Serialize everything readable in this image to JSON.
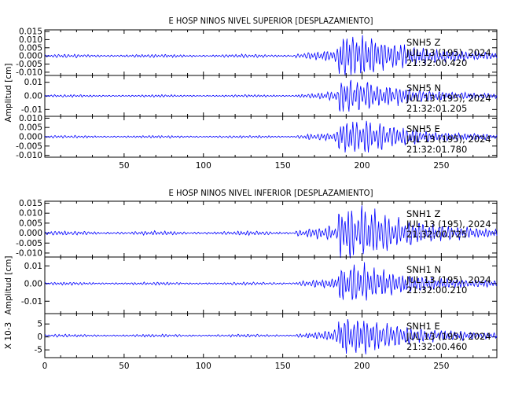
{
  "chart_data": [
    {
      "type": "line",
      "title": "E HOSP NINOS NIVEL SUPERIOR [DESPLAZAMIENTO]",
      "ylabel": "Amplitud [cm]",
      "xlim": [
        0,
        285
      ],
      "x_ticks": [
        "50",
        "100",
        "150",
        "200",
        "250"
      ],
      "x_tick_values": [
        50,
        100,
        150,
        200,
        250
      ],
      "panels": [
        {
          "station": "SNH5",
          "component": "Z",
          "date": "JUL 13 (195), 2024",
          "time": "21:32:00.420",
          "ylim": [
            -0.012,
            0.016
          ],
          "y_ticks": [
            "0.015",
            "0.010",
            "0.005",
            "0.000",
            "-0.005",
            "-0.010"
          ],
          "y_tick_values": [
            0.015,
            0.01,
            0.005,
            0.0,
            -0.005,
            -0.01
          ],
          "peak_amplitude": 0.015,
          "baseline": 0.0
        },
        {
          "station": "SNH5",
          "component": "N",
          "date": "JUL 13 (195), 2024",
          "time": "21:32:01.205",
          "ylim": [
            -0.015,
            0.015
          ],
          "y_ticks": [
            "0.01",
            "0.00",
            "-0.01"
          ],
          "y_tick_values": [
            0.01,
            0.0,
            -0.01
          ],
          "peak_amplitude": 0.013,
          "baseline": 0.0
        },
        {
          "station": "SNH5",
          "component": "E",
          "date": "JUL 13 (195), 2024",
          "time": "21:32:01.780",
          "ylim": [
            -0.011,
            0.011
          ],
          "y_ticks": [
            "0.010",
            "0.005",
            "0.000",
            "-0.005",
            "-0.010"
          ],
          "y_tick_values": [
            0.01,
            0.005,
            0.0,
            -0.005,
            -0.01
          ],
          "peak_amplitude": 0.01,
          "baseline": 0.0
        }
      ]
    },
    {
      "type": "line",
      "title": "E HOSP NINOS NIVEL INFERIOR [DESPLAZAMIENTO]",
      "ylabel": "Amplitud [cm]",
      "xlim": [
        0,
        285
      ],
      "x_ticks": [
        "0",
        "50",
        "100",
        "150",
        "200",
        "250"
      ],
      "x_tick_values": [
        0,
        50,
        100,
        150,
        200,
        250
      ],
      "panels": [
        {
          "station": "SNH1",
          "component": "Z",
          "date": "JUL 13 (195), 2024",
          "time": "21:32:00.725",
          "ylim": [
            -0.012,
            0.016
          ],
          "y_ticks": [
            "0.015",
            "0.010",
            "0.005",
            "0.000",
            "-0.005",
            "-0.010"
          ],
          "y_tick_values": [
            0.015,
            0.01,
            0.005,
            0.0,
            -0.005,
            -0.01
          ],
          "peak_amplitude": 0.015,
          "baseline": 0.0
        },
        {
          "station": "SNH1",
          "component": "N",
          "date": "JUL 13 (195), 2024",
          "time": "21:32:00.210",
          "ylim": [
            -0.017,
            0.015
          ],
          "y_ticks": [
            "0.01",
            "0.00",
            "-0.01"
          ],
          "y_tick_values": [
            0.01,
            0.0,
            -0.01
          ],
          "peak_amplitude": 0.012,
          "baseline": 0.0
        },
        {
          "station": "SNH1",
          "component": "E",
          "date": "JUL 13 (195), 2024",
          "time": "21:32:00.460",
          "ylabel": "X 10-3",
          "ylim": [
            -8,
            9
          ],
          "y_ticks": [
            "5",
            "0",
            "-5"
          ],
          "y_tick_values": [
            5,
            0,
            -5
          ],
          "peak_amplitude": 8,
          "baseline": 0.5
        }
      ]
    }
  ]
}
